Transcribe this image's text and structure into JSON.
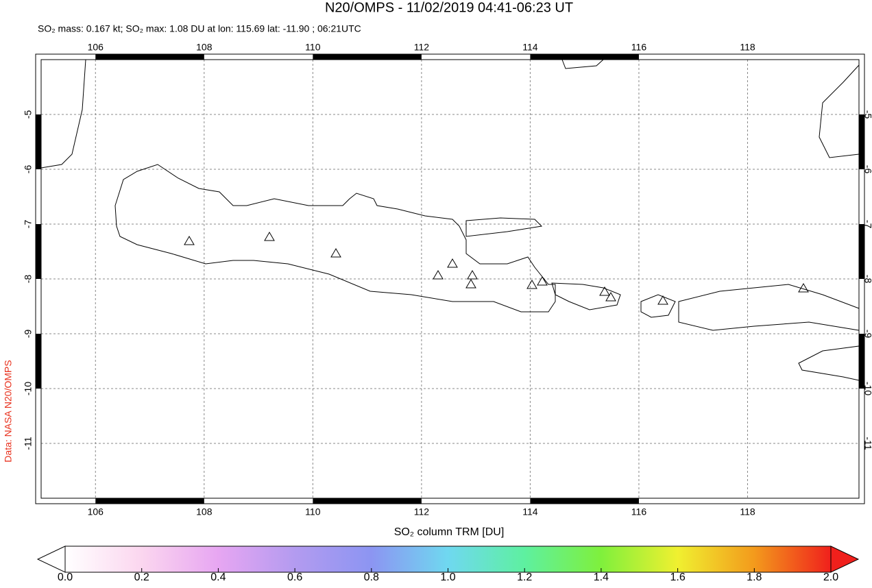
{
  "chart_data": {
    "type": "map",
    "title": "N20/OMPS - 11/02/2019 04:41-06:23 UT",
    "subtitle": "SO₂ mass: 0.167 kt; SO₂ max: 1.08 DU at lon: 115.69 lat: -11.90 ; 06:21UTC",
    "credit": "Data: NASA N20/OMPS",
    "xlim": [
      105.0,
      120.05
    ],
    "ylim": [
      -12.0,
      -4.0
    ],
    "xticks": [
      106,
      108,
      110,
      112,
      114,
      116,
      118
    ],
    "yticks": [
      -5,
      -6,
      -7,
      -8,
      -9,
      -10,
      -11
    ],
    "grid": true,
    "colorbar": {
      "label": "SO₂ column TRM [DU]",
      "lim": [
        0,
        2
      ],
      "ticks": [
        {
          "value": 0,
          "label": "0.0"
        },
        {
          "value": 0.2,
          "label": "0.2"
        },
        {
          "value": 0.4,
          "label": "0.4"
        },
        {
          "value": 0.6,
          "label": "0.6"
        },
        {
          "value": 0.8,
          "label": "0.8"
        },
        {
          "value": 1,
          "label": "1.0"
        },
        {
          "value": 1.2,
          "label": "1.2"
        },
        {
          "value": 1.4,
          "label": "1.4"
        },
        {
          "value": 1.6,
          "label": "1.6"
        },
        {
          "value": 1.8,
          "label": "1.8"
        },
        {
          "value": 2,
          "label": "2.0"
        }
      ],
      "colors": [
        "#ffffff",
        "#fbd6ef",
        "#e7a6f2",
        "#b39bf0",
        "#8c95f2",
        "#6fd8f0",
        "#5ef0a0",
        "#7ff03c",
        "#f0f030",
        "#f39a1c",
        "#f0201c"
      ]
    }
  }
}
